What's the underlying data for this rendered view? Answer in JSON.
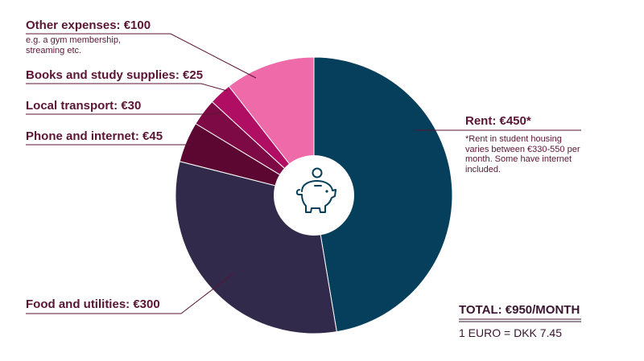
{
  "chart_data": {
    "type": "pie",
    "style": "donut",
    "colors": [
      "#063f5c",
      "#312a4a",
      "#5c0632",
      "#7e0a45",
      "#b00e63",
      "#ee6aa9"
    ],
    "center_icon": "piggy-bank-icon",
    "slices": [
      {
        "label": "Rent: €450*",
        "value": 450,
        "note": "*Rent in student housing varies between €330-550 per month. Some have internet included."
      },
      {
        "label": "Food and utilities: €300",
        "value": 300,
        "note": ""
      },
      {
        "label": "Phone and internet: €45",
        "value": 45,
        "note": ""
      },
      {
        "label": "Local transport: €30",
        "value": 30,
        "note": ""
      },
      {
        "label": "Books and study supplies: €25",
        "value": 25,
        "note": ""
      },
      {
        "label": "Other expenses: €100",
        "value": 100,
        "note": "e.g. a gym membership, streaming etc."
      }
    ],
    "total": "TOTAL: €950/MONTH",
    "exchange_rate": "1 EURO = DKK 7.45"
  }
}
